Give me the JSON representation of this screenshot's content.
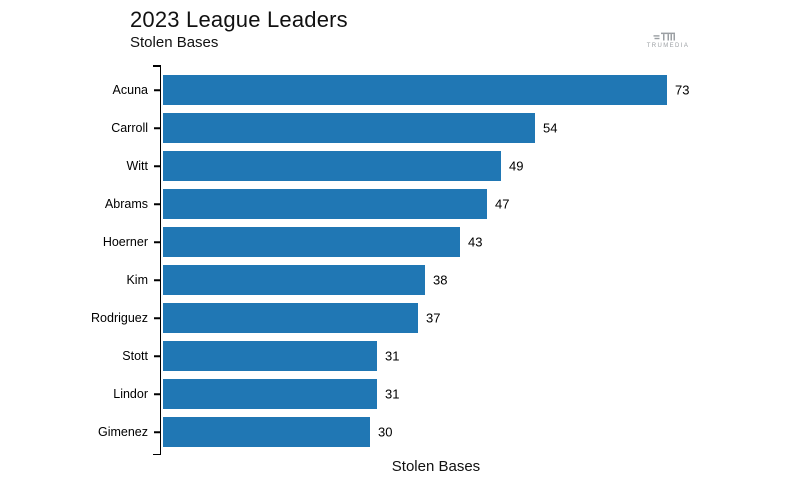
{
  "header": {
    "title": "2023 League Leaders",
    "subtitle": "Stolen Bases",
    "logo_text": "TRUMEDIA"
  },
  "chart_data": {
    "type": "bar",
    "orientation": "horizontal",
    "title": "2023 League Leaders",
    "subtitle": "Stolen Bases",
    "xlabel": "Stolen Bases",
    "ylabel": "",
    "categories": [
      "Acuna",
      "Carroll",
      "Witt",
      "Abrams",
      "Hoerner",
      "Kim",
      "Rodriguez",
      "Stott",
      "Lindor",
      "Gimenez"
    ],
    "values": [
      73,
      54,
      49,
      47,
      43,
      38,
      37,
      31,
      31,
      30
    ],
    "xlim": [
      0,
      78
    ],
    "grid": false,
    "legend": false,
    "value_labels": true,
    "bar_color": "#2077b4"
  },
  "colors": {
    "bar": "#2077b4",
    "axis": "#000000",
    "text": "#111111",
    "logo": "#9b9fa3"
  }
}
